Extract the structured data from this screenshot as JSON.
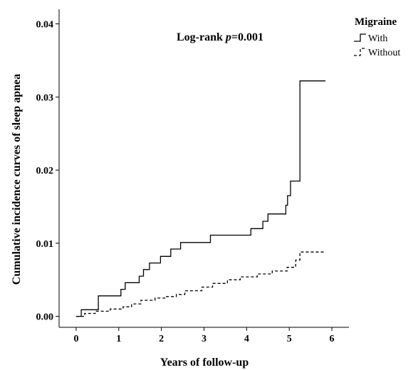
{
  "chart_data": {
    "type": "line",
    "subtype": "step",
    "xlabel": "Years of follow-up",
    "ylabel": "Cumulative incidence curves of sleep apnea",
    "annotation": {
      "prefix": "Log-rank ",
      "italic": "p",
      "suffix": "=0.001"
    },
    "legend": {
      "title": "Migraine",
      "placement": "top-right",
      "entries": [
        "With",
        "Without"
      ]
    },
    "xlim": [
      -0.4,
      6.4
    ],
    "ylim": [
      -0.0015,
      0.042
    ],
    "x_ticks": [
      0,
      1,
      2,
      3,
      4,
      5,
      6
    ],
    "x_tick_labels": [
      "0",
      "1",
      "2",
      "3",
      "4",
      "5",
      "6"
    ],
    "y_ticks": [
      0,
      0.01,
      0.02,
      0.03,
      0.04
    ],
    "y_tick_labels": [
      "0.00",
      "0.01",
      "0.02",
      "0.03",
      "0.04"
    ],
    "grid": false,
    "series": [
      {
        "name": "With",
        "style": "solid",
        "color": "#000000",
        "points": [
          [
            0,
            0
          ],
          [
            0.12,
            0.0009
          ],
          [
            0.52,
            0.0028
          ],
          [
            1.05,
            0.0037
          ],
          [
            1.15,
            0.0046
          ],
          [
            1.48,
            0.0055
          ],
          [
            1.58,
            0.0064
          ],
          [
            1.72,
            0.0073
          ],
          [
            1.98,
            0.0082
          ],
          [
            2.22,
            0.0092
          ],
          [
            2.45,
            0.0101
          ],
          [
            3.15,
            0.0111
          ],
          [
            4.1,
            0.012
          ],
          [
            4.38,
            0.013
          ],
          [
            4.5,
            0.014
          ],
          [
            4.92,
            0.0152
          ],
          [
            4.96,
            0.0165
          ],
          [
            5.03,
            0.0185
          ],
          [
            5.25,
            0.0322
          ],
          [
            5.85,
            0.0322
          ]
        ]
      },
      {
        "name": "Without",
        "style": "dashed",
        "color": "#000000",
        "points": [
          [
            0,
            0
          ],
          [
            0.2,
            0.0004
          ],
          [
            0.45,
            0.0007
          ],
          [
            0.8,
            0.001
          ],
          [
            1.1,
            0.0013
          ],
          [
            1.3,
            0.0017
          ],
          [
            1.52,
            0.0022
          ],
          [
            1.85,
            0.0025
          ],
          [
            2.1,
            0.0027
          ],
          [
            2.35,
            0.003
          ],
          [
            2.55,
            0.0035
          ],
          [
            2.95,
            0.004
          ],
          [
            3.2,
            0.0045
          ],
          [
            3.55,
            0.005
          ],
          [
            3.85,
            0.0054
          ],
          [
            4.25,
            0.0058
          ],
          [
            4.6,
            0.0062
          ],
          [
            4.95,
            0.0067
          ],
          [
            5.15,
            0.0077
          ],
          [
            5.25,
            0.0088
          ],
          [
            5.85,
            0.0088
          ]
        ]
      }
    ]
  }
}
